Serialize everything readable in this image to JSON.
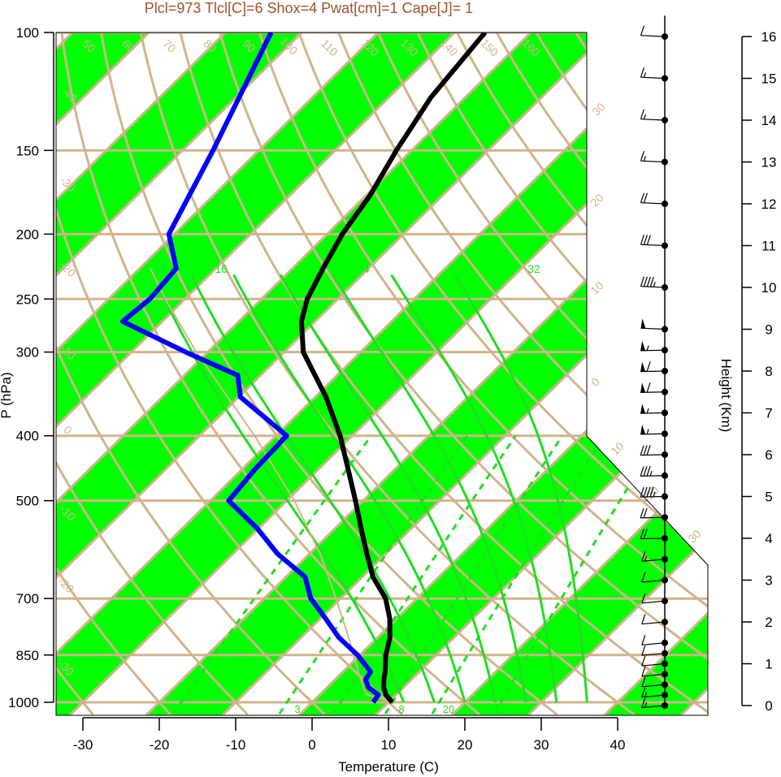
{
  "title": "Plcl=973 Tlcl[C]=6 Shox=4 Pwat[cm]=1 Cape[J]= 1",
  "colors": {
    "title": "#a0522d",
    "band": "#00ff00",
    "isobar": "#d2b48c",
    "isotherm": "#d2b48c",
    "dry_adiabat": "#d2b48c",
    "moist_adiabat": "#22dd22",
    "mixing_ratio": "#22dd22",
    "temperature": "#000000",
    "dewpoint": "#0000ff",
    "parcel": "#d2b48c"
  },
  "chart_data": {
    "type": "skew-t",
    "title": "Plcl=973 Tlcl[C]=6 Shox=4 Pwat[cm]=1 Cape[J]= 1",
    "xlabel": "Temperature (C)",
    "ylabel": "P (hPa)",
    "y2label": "Height (Km)",
    "xlim": [
      -33.5,
      51.5
    ],
    "ylim": [
      1050,
      100
    ],
    "y_scale": "log",
    "x_ticks": [
      -30,
      -20,
      -10,
      0,
      10,
      20,
      30,
      40
    ],
    "pressure_ticks": [
      100,
      150,
      200,
      250,
      300,
      400,
      500,
      700,
      850,
      1000
    ],
    "height_ticks_km": [
      0,
      1,
      2,
      3,
      4,
      5,
      6,
      7,
      8,
      9,
      10,
      11,
      12,
      13,
      14,
      15,
      16
    ],
    "isobars": [
      100,
      150,
      200,
      250,
      300,
      400,
      500,
      700,
      850,
      1000
    ],
    "isotherm_bands": "alternating green/white isotherm bands every 10 C",
    "isotherm_labels": [
      -30,
      -20,
      -10,
      0,
      10,
      20,
      30
    ],
    "dry_adiabat_labels": [
      -40,
      -30,
      -20,
      -10,
      0,
      10,
      20,
      30,
      40,
      50,
      60,
      70,
      80,
      90,
      100,
      110,
      120,
      130,
      140,
      150,
      160
    ],
    "moist_adiabat_labels": [
      12,
      16,
      24,
      32
    ],
    "mixing_ratio_labels": [
      3,
      8,
      20
    ],
    "temperature": {
      "pressure": [
        1000,
        975,
        950,
        925,
        900,
        850,
        800,
        750,
        700,
        650,
        600,
        550,
        500,
        450,
        400,
        350,
        300,
        270,
        250,
        225,
        200,
        175,
        150,
        125,
        100
      ],
      "values": [
        10.5,
        8.7,
        7.4,
        6.4,
        5.5,
        3.4,
        1.6,
        -0.9,
        -4.1,
        -8.6,
        -12.5,
        -16.6,
        -21.0,
        -26.0,
        -31.6,
        -38.6,
        -47.5,
        -51.8,
        -54.0,
        -56.0,
        -58.0,
        -59.5,
        -62.0,
        -64.5,
        -66.0
      ]
    },
    "dewpoint": {
      "pressure": [
        1000,
        975,
        950,
        925,
        900,
        850,
        800,
        750,
        700,
        650,
        600,
        550,
        500,
        450,
        400,
        350,
        325,
        300,
        270,
        250,
        225,
        200,
        150,
        100
      ],
      "values": [
        8.0,
        7.7,
        5.4,
        4.0,
        3.6,
        -0.3,
        -5.1,
        -9.3,
        -13.9,
        -17.5,
        -24.2,
        -30.2,
        -37.6,
        -38.3,
        -38.6,
        -49.8,
        -53.0,
        -62.9,
        -75.2,
        -74.6,
        -75.2,
        -80.7,
        -86.0,
        -94.0
      ]
    },
    "parcel": {
      "pressure": [
        1000,
        973,
        900,
        800,
        700,
        600,
        500,
        400,
        300,
        250,
        225
      ],
      "values": [
        10.5,
        6.0,
        2.0,
        -3.8,
        -10.6,
        -18.6,
        -29.0,
        -42.8,
        -61.5,
        -72.6,
        -78.6
      ]
    },
    "wind_barbs": {
      "height_km": [
        0,
        0.25,
        0.5,
        0.75,
        1.0,
        1.25,
        1.5,
        2.0,
        2.5,
        3.0,
        3.5,
        4.0,
        4.5,
        5.0,
        5.5,
        6.0,
        6.5,
        7.0,
        7.5,
        8.0,
        8.5,
        9.0,
        10.0,
        11.0,
        12.0,
        13.0,
        14.0,
        15.0,
        16.0
      ],
      "speed_kt": [
        15,
        15,
        10,
        10,
        10,
        10,
        10,
        10,
        10,
        10,
        15,
        20,
        20,
        45,
        35,
        30,
        55,
        55,
        60,
        60,
        55,
        50,
        45,
        30,
        20,
        15,
        15,
        15,
        10
      ]
    }
  }
}
